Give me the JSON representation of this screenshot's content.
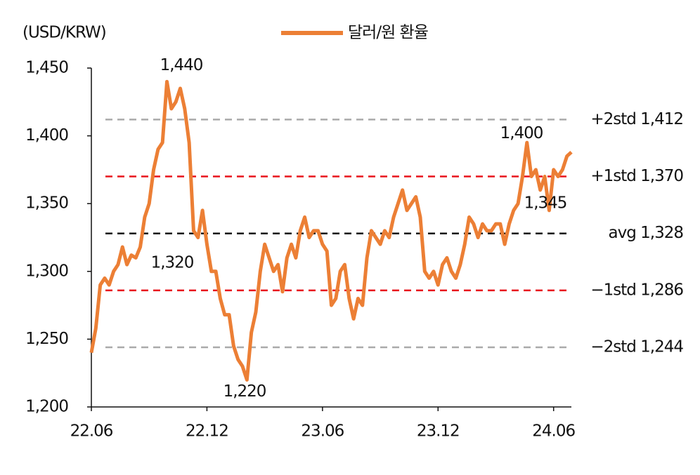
{
  "chart_data": {
    "type": "line",
    "axis_title": "(USD/KRW)",
    "categories": [
      "22.06",
      null,
      null,
      null,
      null,
      null,
      null,
      null,
      null,
      null,
      null,
      null,
      null,
      null,
      null,
      null,
      null,
      null,
      null,
      null,
      null,
      null,
      null,
      null,
      null,
      null,
      "22.12",
      null,
      null,
      null,
      null,
      null,
      null,
      null,
      null,
      null,
      null,
      null,
      null,
      null,
      null,
      null,
      null,
      null,
      null,
      null,
      null,
      null,
      null,
      null,
      null,
      null,
      "23.06",
      null,
      null,
      null,
      null,
      null,
      null,
      null,
      null,
      null,
      null,
      null,
      null,
      null,
      null,
      null,
      null,
      null,
      null,
      null,
      null,
      null,
      null,
      null,
      null,
      null,
      "23.12",
      null,
      null,
      null,
      null,
      null,
      null,
      null,
      null,
      null,
      null,
      null,
      null,
      null,
      null,
      null,
      null,
      null,
      null,
      null,
      null,
      null,
      null,
      null,
      null,
      null,
      "24.06",
      null,
      null,
      null,
      null
    ],
    "series": [
      {
        "name": "달러/원 환율",
        "color": "#ec7f35",
        "values": [
          1240,
          1258,
          1290,
          1295,
          1290,
          1300,
          1305,
          1318,
          1305,
          1312,
          1310,
          1318,
          1340,
          1350,
          1375,
          1390,
          1395,
          1440,
          1420,
          1425,
          1435,
          1420,
          1395,
          1330,
          1325,
          1345,
          1320,
          1300,
          1300,
          1280,
          1268,
          1268,
          1245,
          1235,
          1230,
          1220,
          1255,
          1270,
          1300,
          1320,
          1310,
          1300,
          1305,
          1285,
          1310,
          1320,
          1310,
          1330,
          1340,
          1325,
          1330,
          1330,
          1320,
          1315,
          1275,
          1280,
          1300,
          1305,
          1280,
          1265,
          1280,
          1275,
          1310,
          1330,
          1325,
          1320,
          1330,
          1325,
          1340,
          1350,
          1360,
          1345,
          1350,
          1355,
          1340,
          1300,
          1295,
          1300,
          1290,
          1305,
          1310,
          1300,
          1295,
          1305,
          1320,
          1340,
          1335,
          1325,
          1335,
          1330,
          1330,
          1335,
          1335,
          1320,
          1335,
          1345,
          1350,
          1370,
          1395,
          1370,
          1375,
          1360,
          1370,
          1345,
          1375,
          1370,
          1375,
          1385,
          1388
        ]
      }
    ],
    "ylim": [
      1200,
      1450
    ],
    "yticks": [
      {
        "value": 1200,
        "label": "1,200"
      },
      {
        "value": 1250,
        "label": "1,250"
      },
      {
        "value": 1300,
        "label": "1,300"
      },
      {
        "value": 1350,
        "label": "1,350"
      },
      {
        "value": 1400,
        "label": "1,400"
      },
      {
        "value": 1450,
        "label": "1,450"
      }
    ],
    "reference_lines": [
      {
        "label": "+2std 1,412",
        "value": 1412,
        "color": "#aaaaaa"
      },
      {
        "label": "+1std 1,370",
        "value": 1370,
        "color": "#e8141c"
      },
      {
        "label": "avg 1,328",
        "value": 1328,
        "color": "#111111"
      },
      {
        "label": "−1std 1,286",
        "value": 1286,
        "color": "#e8141c"
      },
      {
        "label": "−2std 1,244",
        "value": 1244,
        "color": "#aaaaaa"
      }
    ],
    "annotations": [
      {
        "label": "1,440",
        "value": 1440
      },
      {
        "label": "1,320",
        "value": 1320
      },
      {
        "label": "1,220",
        "value": 1220
      },
      {
        "label": "1,400",
        "value": 1400
      },
      {
        "label": "1,345",
        "value": 1345
      }
    ]
  }
}
